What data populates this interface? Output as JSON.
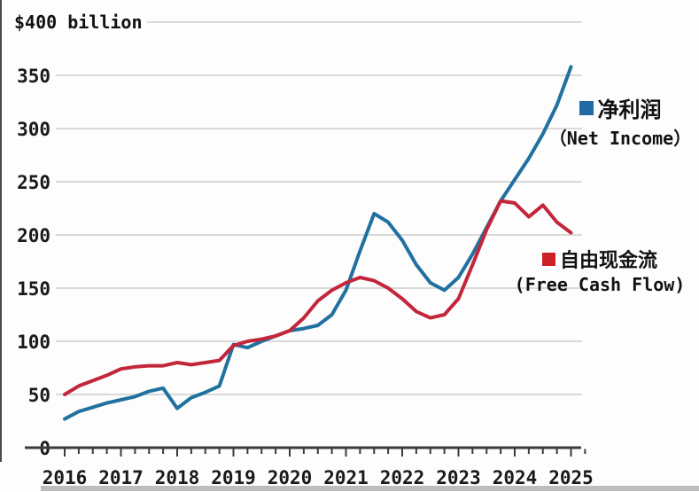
{
  "title": "$400 billion",
  "legend": {
    "net_income": {
      "label_zh": "净利润",
      "label_en": "（Net Income）",
      "color": "#1f6ba6"
    },
    "free_cash_flow": {
      "label_zh": "自由现金流",
      "label_en": "(Free Cash Flow)",
      "color": "#ce2127"
    }
  },
  "chart_data": {
    "type": "line",
    "title": "$400 billion",
    "unit": "$ billion",
    "ylim": [
      0,
      400
    ],
    "y_tick_interval": 50,
    "y_ticks": [
      0,
      50,
      100,
      150,
      200,
      250,
      300,
      350
    ],
    "grid": true,
    "legend_position": "inline-right",
    "x_tick_years": [
      "2016",
      "2017",
      "2018",
      "2019",
      "2020",
      "2021",
      "2022",
      "2023",
      "2024",
      "2025"
    ],
    "categories": [
      "2016Q1",
      "2016Q2",
      "2016Q3",
      "2016Q4",
      "2017Q1",
      "2017Q2",
      "2017Q3",
      "2017Q4",
      "2018Q1",
      "2018Q2",
      "2018Q3",
      "2018Q4",
      "2019Q1",
      "2019Q2",
      "2019Q3",
      "2019Q4",
      "2020Q1",
      "2020Q2",
      "2020Q3",
      "2020Q4",
      "2021Q1",
      "2021Q2",
      "2021Q3",
      "2021Q4",
      "2022Q1",
      "2022Q2",
      "2022Q3",
      "2022Q4",
      "2023Q1",
      "2023Q2",
      "2023Q3",
      "2023Q4",
      "2024Q1",
      "2024Q2",
      "2024Q3",
      "2024Q4",
      "2025Q1"
    ],
    "series": [
      {
        "name": "净利润 (Net Income)",
        "color": "#20719f",
        "values": [
          27,
          34,
          38,
          42,
          45,
          48,
          53,
          56,
          37,
          47,
          52,
          58,
          97,
          94,
          100,
          105,
          110,
          112,
          115,
          125,
          148,
          185,
          220,
          212,
          195,
          172,
          155,
          148,
          160,
          182,
          207,
          232,
          252,
          272,
          295,
          322,
          358
        ]
      },
      {
        "name": "自由现金流 (Free Cash Flow)",
        "color": "#c3263b",
        "values": [
          50,
          58,
          63,
          68,
          74,
          76,
          77,
          77,
          80,
          78,
          80,
          82,
          96,
          100,
          102,
          105,
          110,
          122,
          138,
          148,
          155,
          160,
          157,
          150,
          140,
          128,
          122,
          125,
          140,
          172,
          205,
          232,
          230,
          217,
          228,
          212,
          202
        ]
      }
    ]
  }
}
